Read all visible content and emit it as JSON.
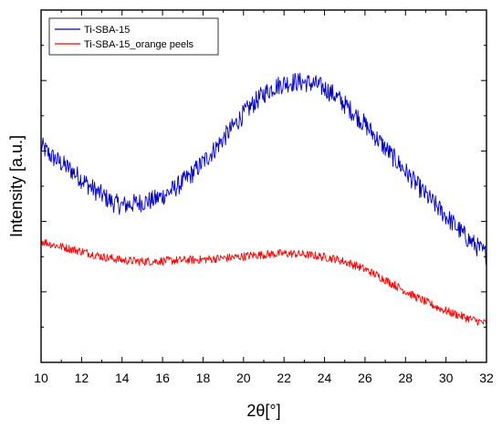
{
  "chart_data": {
    "type": "line",
    "title": "",
    "xlabel": "2θ[°]",
    "ylabel": "Intensity [a.u.]",
    "xlim": [
      10,
      32
    ],
    "ylim": [
      0,
      10
    ],
    "x_ticks": [
      10,
      12,
      14,
      16,
      18,
      20,
      22,
      24,
      26,
      28,
      30,
      32
    ],
    "y_ticks_labeled": false,
    "grid": false,
    "legend_position": "top-left",
    "x": [
      10,
      10.5,
      11,
      11.5,
      12,
      12.5,
      13,
      13.5,
      14,
      14.5,
      15,
      15.5,
      16,
      16.5,
      17,
      17.5,
      18,
      18.5,
      19,
      19.5,
      20,
      20.5,
      21,
      21.5,
      22,
      22.5,
      23,
      23.5,
      24,
      24.5,
      25,
      25.5,
      26,
      26.5,
      27,
      27.5,
      28,
      28.5,
      29,
      29.5,
      30,
      30.5,
      31,
      31.5,
      32
    ],
    "series": [
      {
        "name": "Ti-SBA-15",
        "color": "#0000cc",
        "values": [
          6.15,
          5.85,
          5.65,
          5.45,
          5.2,
          4.95,
          4.75,
          4.55,
          4.45,
          4.5,
          4.55,
          4.6,
          4.72,
          4.9,
          5.12,
          5.38,
          5.68,
          6.0,
          6.35,
          6.7,
          7.05,
          7.35,
          7.62,
          7.82,
          7.92,
          7.96,
          7.95,
          7.9,
          7.78,
          7.58,
          7.32,
          7.05,
          6.75,
          6.42,
          6.08,
          5.75,
          5.42,
          5.08,
          4.75,
          4.45,
          4.15,
          3.85,
          3.55,
          3.3,
          3.05
        ]
      },
      {
        "name": "Ti-SBA-15_orange peels",
        "color": "#ff0000",
        "values": [
          3.45,
          3.35,
          3.28,
          3.22,
          3.15,
          3.08,
          3.0,
          2.95,
          2.9,
          2.88,
          2.87,
          2.87,
          2.88,
          2.89,
          2.9,
          2.91,
          2.92,
          2.94,
          2.96,
          2.98,
          3.01,
          3.04,
          3.06,
          3.08,
          3.09,
          3.08,
          3.06,
          3.03,
          2.99,
          2.94,
          2.86,
          2.76,
          2.64,
          2.5,
          2.34,
          2.18,
          2.02,
          1.86,
          1.72,
          1.58,
          1.46,
          1.36,
          1.27,
          1.18,
          1.1
        ]
      }
    ]
  }
}
